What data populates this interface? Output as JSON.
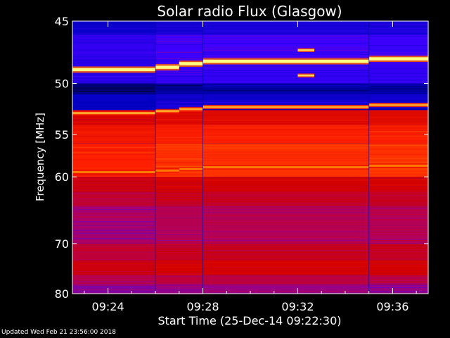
{
  "chart_data": {
    "type": "heatmap",
    "title": "Solar radio Flux (Glasgow)",
    "xlabel": "Start Time (25-Dec-14 09:22:30)",
    "ylabel": "Frequency [MHz]",
    "x_ticks": [
      "09:24",
      "09:28",
      "09:32",
      "09:36"
    ],
    "x_tick_minutes": [
      1.5,
      5.5,
      9.5,
      13.5
    ],
    "xlim_minutes": [
      0,
      15
    ],
    "y_ticks": [
      45,
      50,
      55,
      60,
      70,
      80
    ],
    "ylim": [
      45,
      80
    ],
    "y_scale": "reciprocal",
    "colormap": [
      "#000000",
      "#0000c0",
      "#4000ff",
      "#b00060",
      "#d00000",
      "#ff2000",
      "#ff8000",
      "#ffff80"
    ],
    "segment_breaks_minutes": [
      3.5,
      5.5,
      12.5
    ],
    "bands": [
      {
        "freq_low": 45.0,
        "freq_high": 46.0,
        "level": 0.2
      },
      {
        "freq_low": 46.0,
        "freq_high": 48.0,
        "level": 0.28
      },
      {
        "freq_low": 48.0,
        "freq_high": 50.0,
        "level": 0.26
      },
      {
        "freq_low": 50.0,
        "freq_high": 51.0,
        "level": 0.12
      },
      {
        "freq_low": 51.0,
        "freq_high": 52.5,
        "level": 0.18
      },
      {
        "freq_low": 52.5,
        "freq_high": 54.0,
        "level": 0.62
      },
      {
        "freq_low": 54.0,
        "freq_high": 56.0,
        "level": 0.7
      },
      {
        "freq_low": 56.0,
        "freq_high": 60.0,
        "level": 0.74
      },
      {
        "freq_low": 60.0,
        "freq_high": 62.0,
        "level": 0.58
      },
      {
        "freq_low": 62.0,
        "freq_high": 64.0,
        "level": 0.52
      },
      {
        "freq_low": 64.0,
        "freq_high": 67.0,
        "level": 0.45
      },
      {
        "freq_low": 67.0,
        "freq_high": 70.0,
        "level": 0.44
      },
      {
        "freq_low": 70.0,
        "freq_high": 73.0,
        "level": 0.52
      },
      {
        "freq_low": 73.0,
        "freq_high": 76.0,
        "level": 0.58
      },
      {
        "freq_low": 76.0,
        "freq_high": 78.0,
        "level": 0.48
      },
      {
        "freq_low": 78.0,
        "freq_high": 80.0,
        "level": 0.4
      }
    ],
    "emission_lines": [
      {
        "segments": [
          {
            "t0": 0,
            "t1": 3.5,
            "freq": 48.8
          },
          {
            "t0": 3.5,
            "t1": 4.5,
            "freq": 48.6
          },
          {
            "t0": 4.5,
            "t1": 5.5,
            "freq": 48.3
          },
          {
            "t0": 5.5,
            "t1": 12.5,
            "freq": 48.1
          },
          {
            "t0": 12.5,
            "t1": 15,
            "freq": 47.9
          }
        ],
        "level": 1.0,
        "width": 1.0
      },
      {
        "segments": [
          {
            "t0": 0,
            "t1": 3.5,
            "freq": 52.8
          },
          {
            "t0": 3.5,
            "t1": 4.5,
            "freq": 52.6
          },
          {
            "t0": 4.5,
            "t1": 5.5,
            "freq": 52.4
          },
          {
            "t0": 5.5,
            "t1": 12.5,
            "freq": 52.2
          },
          {
            "t0": 12.5,
            "t1": 15,
            "freq": 52.0
          }
        ],
        "level": 0.9,
        "width": 0.6
      },
      {
        "segments": [
          {
            "t0": 0,
            "t1": 3.5,
            "freq": 59.4
          },
          {
            "t0": 3.5,
            "t1": 4.5,
            "freq": 59.2
          },
          {
            "t0": 4.5,
            "t1": 5.5,
            "freq": 59.0
          },
          {
            "t0": 5.5,
            "t1": 12.5,
            "freq": 58.8
          },
          {
            "t0": 12.5,
            "t1": 15,
            "freq": 58.6
          }
        ],
        "level": 0.85,
        "width": 0.6
      },
      {
        "segments": [
          {
            "t0": 9.5,
            "t1": 10.2,
            "freq": 47.2
          }
        ],
        "level": 0.95,
        "width": 0.5
      },
      {
        "segments": [
          {
            "t0": 9.5,
            "t1": 10.2,
            "freq": 49.3
          }
        ],
        "level": 0.95,
        "width": 0.5
      }
    ]
  },
  "footer": {
    "updated": "Updated Wed Feb 21 23:56:00 2018"
  }
}
